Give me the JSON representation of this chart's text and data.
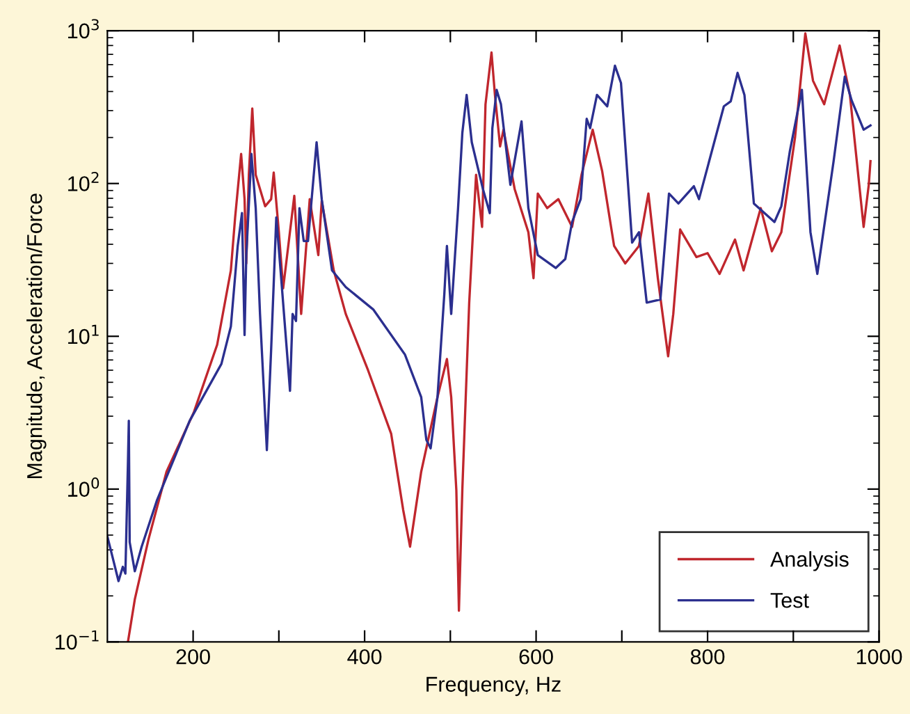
{
  "chart_data": {
    "type": "line",
    "xlabel": "Frequency, Hz",
    "ylabel": "Magnitude, Acceleration/Force",
    "log": "y",
    "grid": false,
    "legend": "bottom right",
    "line_style": "solid",
    "marker": "none",
    "xlim": [
      100,
      1000
    ],
    "ylim": [
      0.1,
      1000
    ],
    "xticks": [
      200,
      {
        "value": 300,
        "label": null
      },
      400,
      {
        "value": 500,
        "label": null
      },
      600,
      {
        "value": 700,
        "label": null
      },
      800,
      {
        "value": 900,
        "label": null
      },
      1000
    ],
    "yticks": [
      {
        "value": 0.1,
        "label": "10$^{−1}$"
      },
      {
        "value": 1,
        "label": "10$^{0}$"
      },
      {
        "value": 10,
        "label": "10$^{1}$"
      },
      {
        "value": 100,
        "label": "10$^{2}$"
      },
      {
        "value": 1000,
        "label": "10$^{3}$"
      }
    ],
    "series": [
      {
        "name": "Analysis",
        "color": "#c0262d",
        "x": [
          124,
          132,
          148,
          169,
          201,
          228,
          244,
          249,
          256,
          260,
          262,
          265,
          269,
          273,
          284,
          291,
          294,
          300,
          305,
          318,
          326,
          336,
          346,
          350,
          364,
          378,
          404,
          431,
          445,
          453,
          466,
          485,
          496,
          501,
          507,
          510,
          514,
          522,
          530,
          537,
          541,
          548,
          552,
          558,
          562,
          575,
          591,
          597,
          602,
          613,
          626,
          642,
          653,
          666,
          677,
          691,
          704,
          720,
          731,
          742,
          754,
          760,
          768,
          787,
          800,
          814,
          832,
          842,
          862,
          875,
          886,
          902,
          914,
          923,
          936,
          954,
          966,
          982,
          988,
          990
        ],
        "values": [
          0.1,
          0.19,
          0.47,
          1.3,
          3.2,
          8.8,
          27,
          60,
          156,
          79,
          30,
          114,
          310,
          114,
          71,
          79,
          118,
          48,
          20.6,
          83,
          14,
          79,
          34,
          77,
          27,
          14,
          6,
          2.3,
          0.73,
          0.42,
          1.3,
          4,
          7.1,
          4,
          0.98,
          0.16,
          1.0,
          16.6,
          114,
          52,
          330,
          720,
          380,
          175,
          225,
          92,
          48,
          24,
          86,
          69,
          79,
          52,
          114,
          225,
          121,
          39,
          30,
          39,
          86,
          24,
          7.4,
          14,
          50,
          33,
          35,
          25.6,
          43,
          27,
          69,
          36,
          48,
          200,
          960,
          470,
          330,
          800,
          380,
          52,
          98,
          140
        ]
      },
      {
        "name": "Test",
        "color": "#2b2f8f",
        "x": [
          100,
          113,
          118,
          121,
          124,
          125,
          126,
          132,
          140,
          158,
          196,
          233,
          244,
          252,
          257,
          260,
          262,
          268,
          273,
          278,
          286,
          291,
          297,
          302,
          313,
          316,
          320,
          324,
          329,
          334,
          344,
          350,
          362,
          378,
          410,
          447,
          466,
          472,
          477,
          485,
          493,
          496,
          501,
          509,
          514,
          519,
          525,
          538,
          546,
          549,
          554,
          559,
          570,
          583,
          591,
          602,
          623,
          634,
          642,
          652,
          659,
          663,
          671,
          683,
          692,
          699,
          712,
          720,
          729,
          745,
          755,
          766,
          784,
          790,
          819,
          827,
          835,
          843,
          854,
          878,
          886,
          896,
          910,
          920,
          928,
          947,
          960,
          968,
          982,
          990
        ],
        "values": [
          0.49,
          0.25,
          0.31,
          0.28,
          1.5,
          2.8,
          0.45,
          0.29,
          0.42,
          0.85,
          2.8,
          6.6,
          11.6,
          39,
          64,
          10.2,
          34,
          156,
          69,
          14,
          1.8,
          8.2,
          60,
          27,
          4.4,
          14,
          12.6,
          69,
          42,
          42,
          186,
          79,
          27,
          21,
          15,
          7.6,
          4,
          2.1,
          1.85,
          4,
          19,
          39,
          14,
          69,
          215,
          380,
          186,
          92,
          64,
          230,
          410,
          330,
          98,
          255,
          69,
          34,
          28,
          32,
          56,
          79,
          265,
          230,
          380,
          320,
          590,
          455,
          41,
          48,
          16.6,
          17.4,
          86,
          74,
          96,
          79,
          320,
          345,
          530,
          380,
          74,
          56,
          71,
          163,
          410,
          48,
          25.6,
          140,
          500,
          350,
          225,
          240
        ]
      }
    ]
  }
}
